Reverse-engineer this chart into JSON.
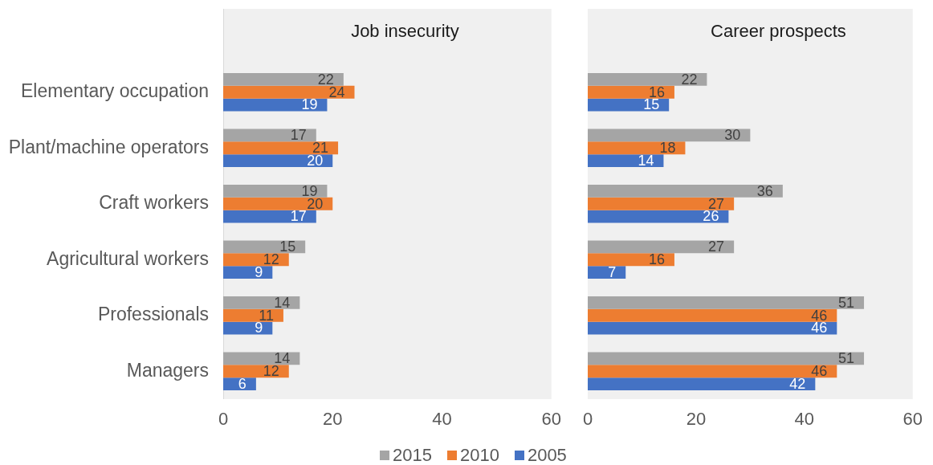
{
  "chart_data": [
    {
      "type": "bar",
      "orientation": "horizontal",
      "title": "Job insecurity",
      "categories": [
        "Elementary occupation",
        "Plant/machine operators",
        "Craft workers",
        "Agricultural workers",
        "Professionals",
        "Managers"
      ],
      "series": [
        {
          "name": "2015",
          "color": "#a5a5a5",
          "values": [
            22,
            17,
            19,
            15,
            14,
            14
          ]
        },
        {
          "name": "2010",
          "color": "#ed7d31",
          "values": [
            24,
            21,
            20,
            12,
            11,
            12
          ]
        },
        {
          "name": "2005",
          "color": "#4472c4",
          "values": [
            19,
            20,
            17,
            9,
            9,
            6
          ]
        }
      ],
      "xlim": [
        0,
        60
      ],
      "xticks": [
        0,
        20,
        40,
        60
      ],
      "data_labels": true,
      "legend": "bottom"
    },
    {
      "type": "bar",
      "orientation": "horizontal",
      "title": "Career prospects",
      "categories": [
        null,
        null,
        null,
        null,
        null,
        null
      ],
      "series": [
        {
          "name": "2015",
          "color": "#a5a5a5",
          "values": [
            22,
            30,
            36,
            27,
            51,
            51
          ]
        },
        {
          "name": "2010",
          "color": "#ed7d31",
          "values": [
            16,
            18,
            27,
            16,
            46,
            46
          ]
        },
        {
          "name": "2005",
          "color": "#4472c4",
          "values": [
            15,
            14,
            26,
            7,
            46,
            42
          ]
        }
      ],
      "xlim": [
        0,
        60
      ],
      "xticks": [
        0,
        20,
        40,
        60
      ],
      "data_labels": true
    }
  ]
}
